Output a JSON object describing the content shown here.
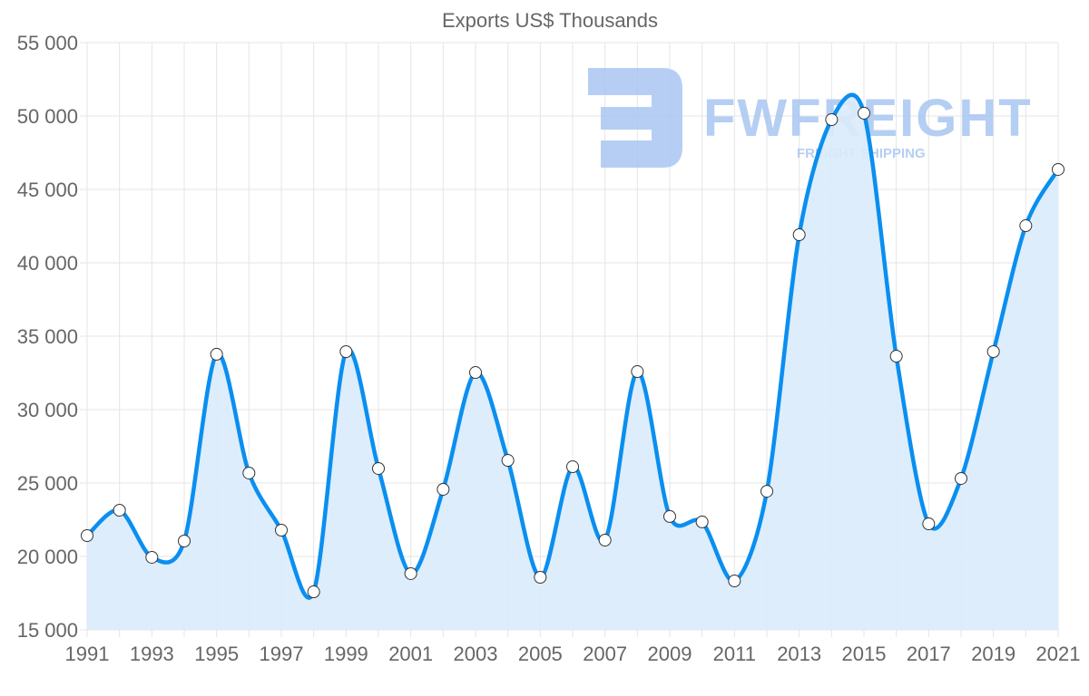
{
  "chart_data": {
    "type": "line",
    "title": "Exports US$ Thousands",
    "xlabel": "",
    "ylabel": "",
    "x": [
      1991,
      1992,
      1993,
      1994,
      1995,
      1996,
      1997,
      1998,
      1999,
      2000,
      2001,
      2002,
      2003,
      2004,
      2005,
      2006,
      2007,
      2008,
      2009,
      2010,
      2011,
      2012,
      2013,
      2014,
      2015,
      2016,
      2017,
      2018,
      2019,
      2020,
      2021
    ],
    "series": [
      {
        "name": "Exports US$ Thousands",
        "filled": true,
        "values": [
          21420,
          23150,
          19940,
          21050,
          33770,
          25680,
          21790,
          17590,
          33950,
          25990,
          18830,
          24570,
          32530,
          26540,
          18580,
          26110,
          21110,
          32590,
          22720,
          22350,
          18330,
          24440,
          41910,
          49750,
          50190,
          33640,
          22220,
          25310,
          33950,
          42530,
          46360
        ]
      }
    ],
    "ylim": [
      15000,
      55000
    ],
    "xlim": [
      1991,
      2021
    ],
    "y_ticks": [
      "15 000",
      "20 000",
      "25 000",
      "30 000",
      "35 000",
      "40 000",
      "45 000",
      "50 000",
      "55 000"
    ],
    "y_tick_values": [
      15000,
      20000,
      25000,
      30000,
      35000,
      40000,
      45000,
      50000,
      55000
    ],
    "x_ticks": [
      "1991",
      "1993",
      "1995",
      "1997",
      "1999",
      "2001",
      "2003",
      "2005",
      "2007",
      "2009",
      "2011",
      "2013",
      "2015",
      "2017",
      "2019",
      "2021"
    ],
    "grid": true,
    "legend": "none",
    "colors": {
      "line": "#0a8ff0",
      "fill": "#d9ebfb",
      "grid": "#e5e5e5",
      "text": "#666666"
    }
  },
  "watermark": {
    "brand": "FWFREIGHT",
    "tagline": "FREIGHT SHIPPING",
    "color": "#a9c6f2"
  }
}
